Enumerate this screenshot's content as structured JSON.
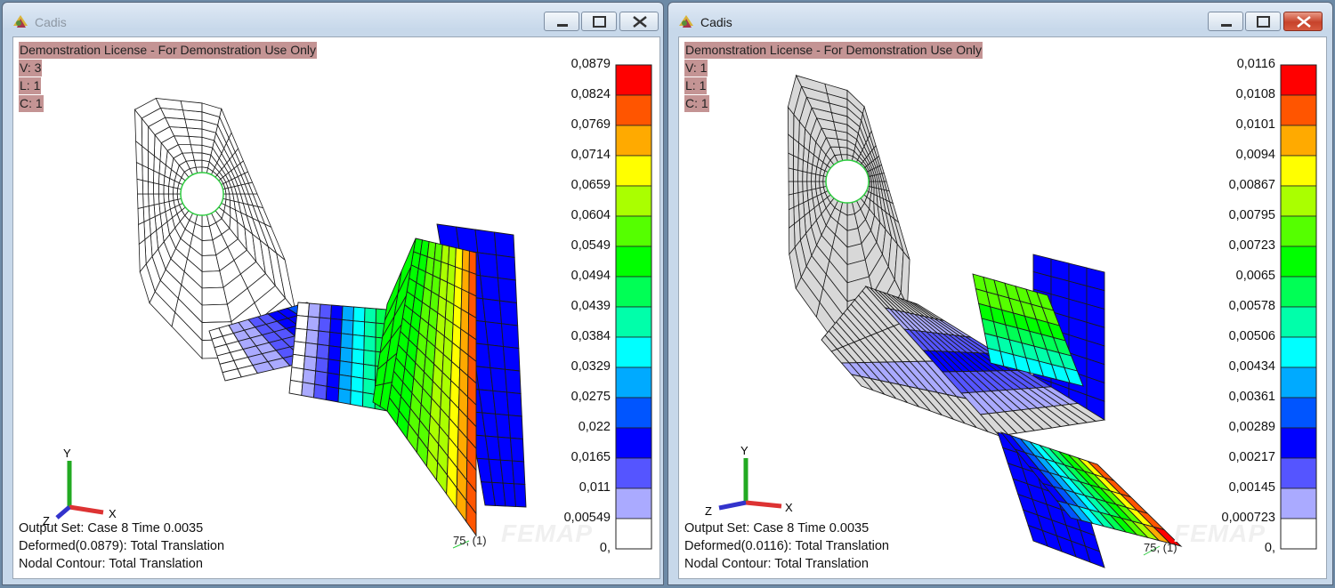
{
  "windows": [
    {
      "title": "Cadis",
      "license": "Demonstration License - For Demonstration Use Only",
      "view": "V: 3",
      "layer": "L: 1",
      "color": "C: 1",
      "legend": [
        "0,0879",
        "0,0824",
        "0,0769",
        "0,0714",
        "0,0659",
        "0,0604",
        "0,0549",
        "0,0494",
        "0,0439",
        "0,0384",
        "0,0329",
        "0,0275",
        "0,022",
        "0,0165",
        "0,011",
        "0,00549",
        "0,"
      ],
      "output_set": "Output Set: Case 8 Time 0.0035",
      "deformed": "Deformed(0.0879): Total Translation",
      "contour": "Nodal Contour: Total Translation",
      "node_label": "75, (1)",
      "watermark": "FEMAP"
    },
    {
      "title": "Cadis",
      "license": "Demonstration License - For Demonstration Use Only",
      "view": "V: 1",
      "layer": "L: 1",
      "color": "C: 1",
      "legend": [
        "0,0116",
        "0,0108",
        "0,0101",
        "0,0094",
        "0,00867",
        "0,00795",
        "0,00723",
        "0,0065",
        "0,00578",
        "0,00506",
        "0,00434",
        "0,00361",
        "0,00289",
        "0,00217",
        "0,00145",
        "0,000723",
        "0,"
      ],
      "output_set": "Output Set: Case 8 Time 0.0035",
      "deformed": "Deformed(0.0116): Total Translation",
      "contour": "Nodal Contour: Total Translation",
      "node_label": "75, (1)",
      "watermark": "FEMAP"
    }
  ],
  "axes": {
    "x": "X",
    "y": "Y",
    "z": "Z"
  },
  "legend_colors": [
    "#ff0000",
    "#ff5500",
    "#ffaa00",
    "#ffff00",
    "#aaff00",
    "#55ff00",
    "#00ff00",
    "#00ff55",
    "#00ffaa",
    "#00ffff",
    "#00aaff",
    "#0055ff",
    "#0000ff",
    "#5555ff",
    "#aaaaff",
    "#ffffff"
  ],
  "icons": {
    "app": "cadis-app-icon",
    "minimize": "minimize-icon",
    "maximize": "maximize-icon",
    "close": "close-icon"
  }
}
